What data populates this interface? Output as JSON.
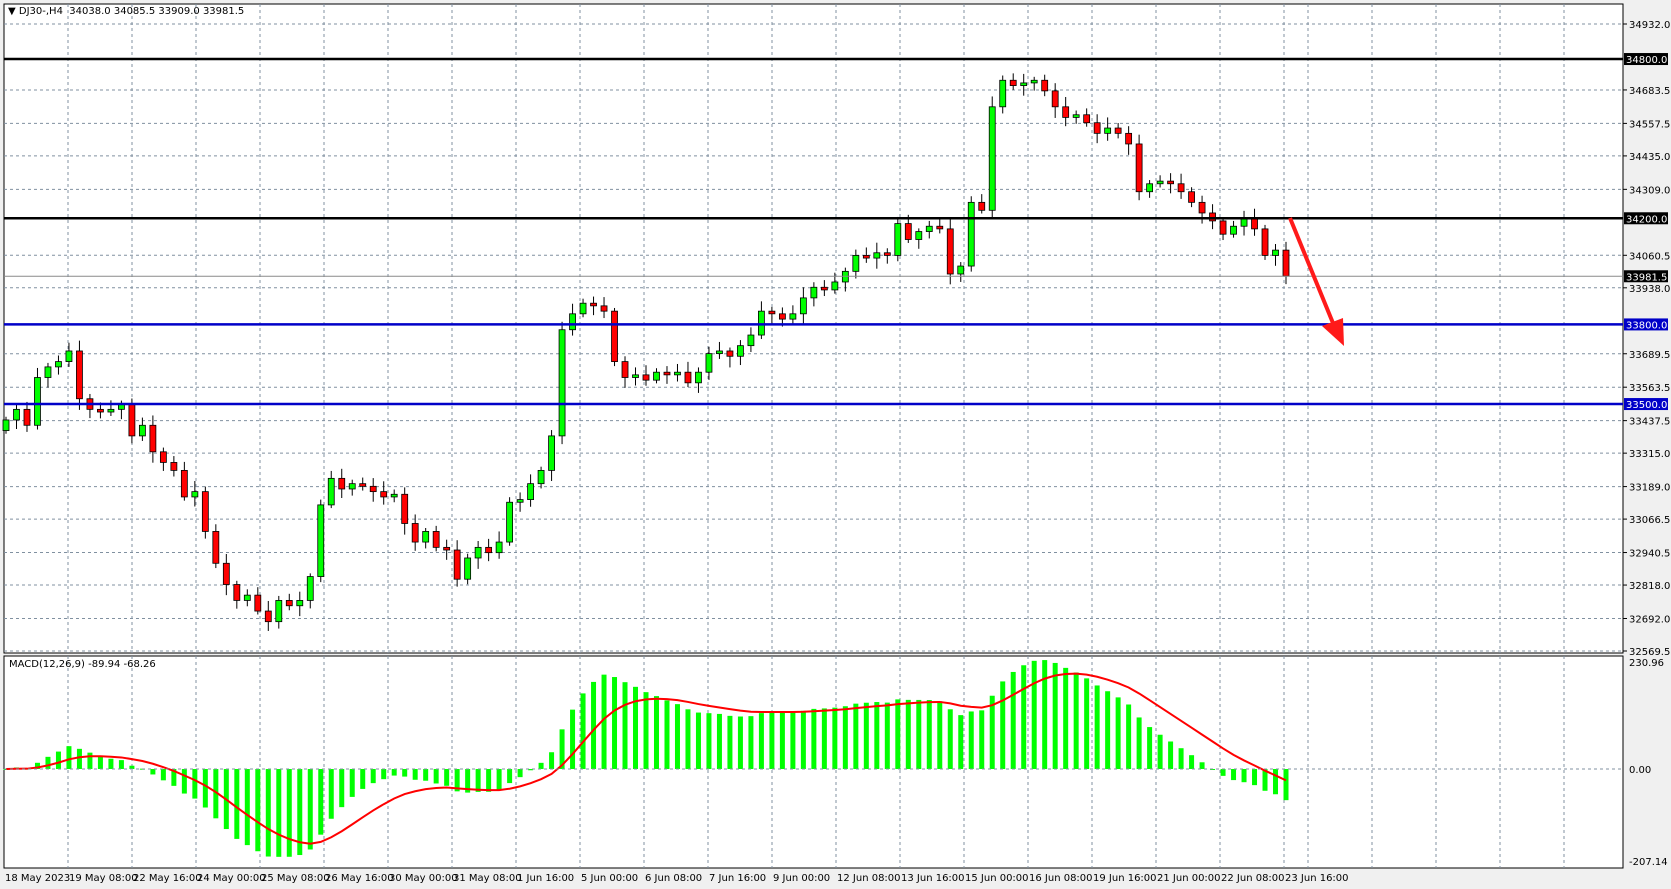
{
  "header": {
    "symbol": "DJ30-,H4",
    "open": "34038.0",
    "high": "34085.5",
    "low": "33909.0",
    "close": "33981.5"
  },
  "macd": {
    "label": "MACD(12,26,9) -89.94 -68.26",
    "axis_top": "230.96",
    "axis_zero": "0.00",
    "axis_bottom": "-207.14",
    "max": 230.96,
    "min": -207.14
  },
  "colors": {
    "bull": "#00ff00",
    "bear": "#ff0000",
    "hline_black": "#000000",
    "hline_blue": "#0000c8",
    "arrow": "#ff1a1a",
    "signal": "#ff0000",
    "histogram": "#00ff00"
  },
  "chart_data": {
    "type": "candlestick",
    "price_axis_ticks": [
      "34932.0",
      "34683.5",
      "34557.5",
      "34435.0",
      "34309.0",
      "34060.5",
      "33938.0",
      "33689.5",
      "33563.5",
      "33437.5",
      "33315.0",
      "33189.0",
      "33066.5",
      "32940.5",
      "32818.0",
      "32692.0",
      "32569.5"
    ],
    "ylim": [
      32569.5,
      34932.0
    ],
    "date_labels": [
      "18 May 2023",
      "19 May 08:00",
      "22 May 16:00",
      "24 May 00:00",
      "25 May 08:00",
      "26 May 16:00",
      "30 May 00:00",
      "31 May 08:00",
      "1 Jun 16:00",
      "5 Jun 00:00",
      "6 Jun 08:00",
      "7 Jun 16:00",
      "9 Jun 00:00",
      "12 Jun 08:00",
      "13 Jun 16:00",
      "15 Jun 00:00",
      "16 Jun 08:00",
      "19 Jun 16:00",
      "21 Jun 00:00",
      "22 Jun 08:00",
      "23 Jun 16:00"
    ],
    "levels": [
      {
        "price": 34800.0,
        "label": "34800.0",
        "color": "black"
      },
      {
        "price": 34200.0,
        "label": "34200.0",
        "color": "black"
      },
      {
        "price": 33800.0,
        "label": "33800.0",
        "color": "blue"
      },
      {
        "price": 33500.0,
        "label": "33500.0",
        "color": "blue"
      }
    ],
    "current_price": {
      "price": 33981.5,
      "label": "33981.5"
    },
    "first_open": 33400,
    "closes": [
      33440,
      33480,
      33420,
      33600,
      33640,
      33660,
      33700,
      33520,
      33480,
      33470,
      33480,
      33500,
      33380,
      33420,
      33320,
      33280,
      33250,
      33150,
      33170,
      33020,
      32900,
      32820,
      32760,
      32780,
      32720,
      32680,
      32760,
      32740,
      32760,
      32850,
      33120,
      33220,
      33180,
      33200,
      33190,
      33170,
      33150,
      33160,
      33050,
      32980,
      33020,
      32960,
      32950,
      32840,
      32920,
      32960,
      32940,
      32980,
      33130,
      33140,
      33200,
      33250,
      33380,
      33780,
      33840,
      33880,
      33870,
      33850,
      33660,
      33600,
      33610,
      33590,
      33620,
      33610,
      33620,
      33580,
      33620,
      33690,
      33700,
      33680,
      33720,
      33760,
      33850,
      33840,
      33820,
      33840,
      33900,
      33940,
      33930,
      33960,
      34000,
      34060,
      34050,
      34070,
      34060,
      34180,
      34120,
      34150,
      34170,
      34160,
      33990,
      34020,
      34260,
      34230,
      34620,
      34720,
      34700,
      34710,
      34720,
      34680,
      34620,
      34580,
      34590,
      34560,
      34520,
      34540,
      34520,
      34480,
      34300,
      34330,
      34340,
      34330,
      34300,
      34260,
      34220,
      34190,
      34140,
      34170,
      34200,
      34160,
      34060,
      34080,
      33982
    ],
    "annotation": "down-arrow"
  }
}
